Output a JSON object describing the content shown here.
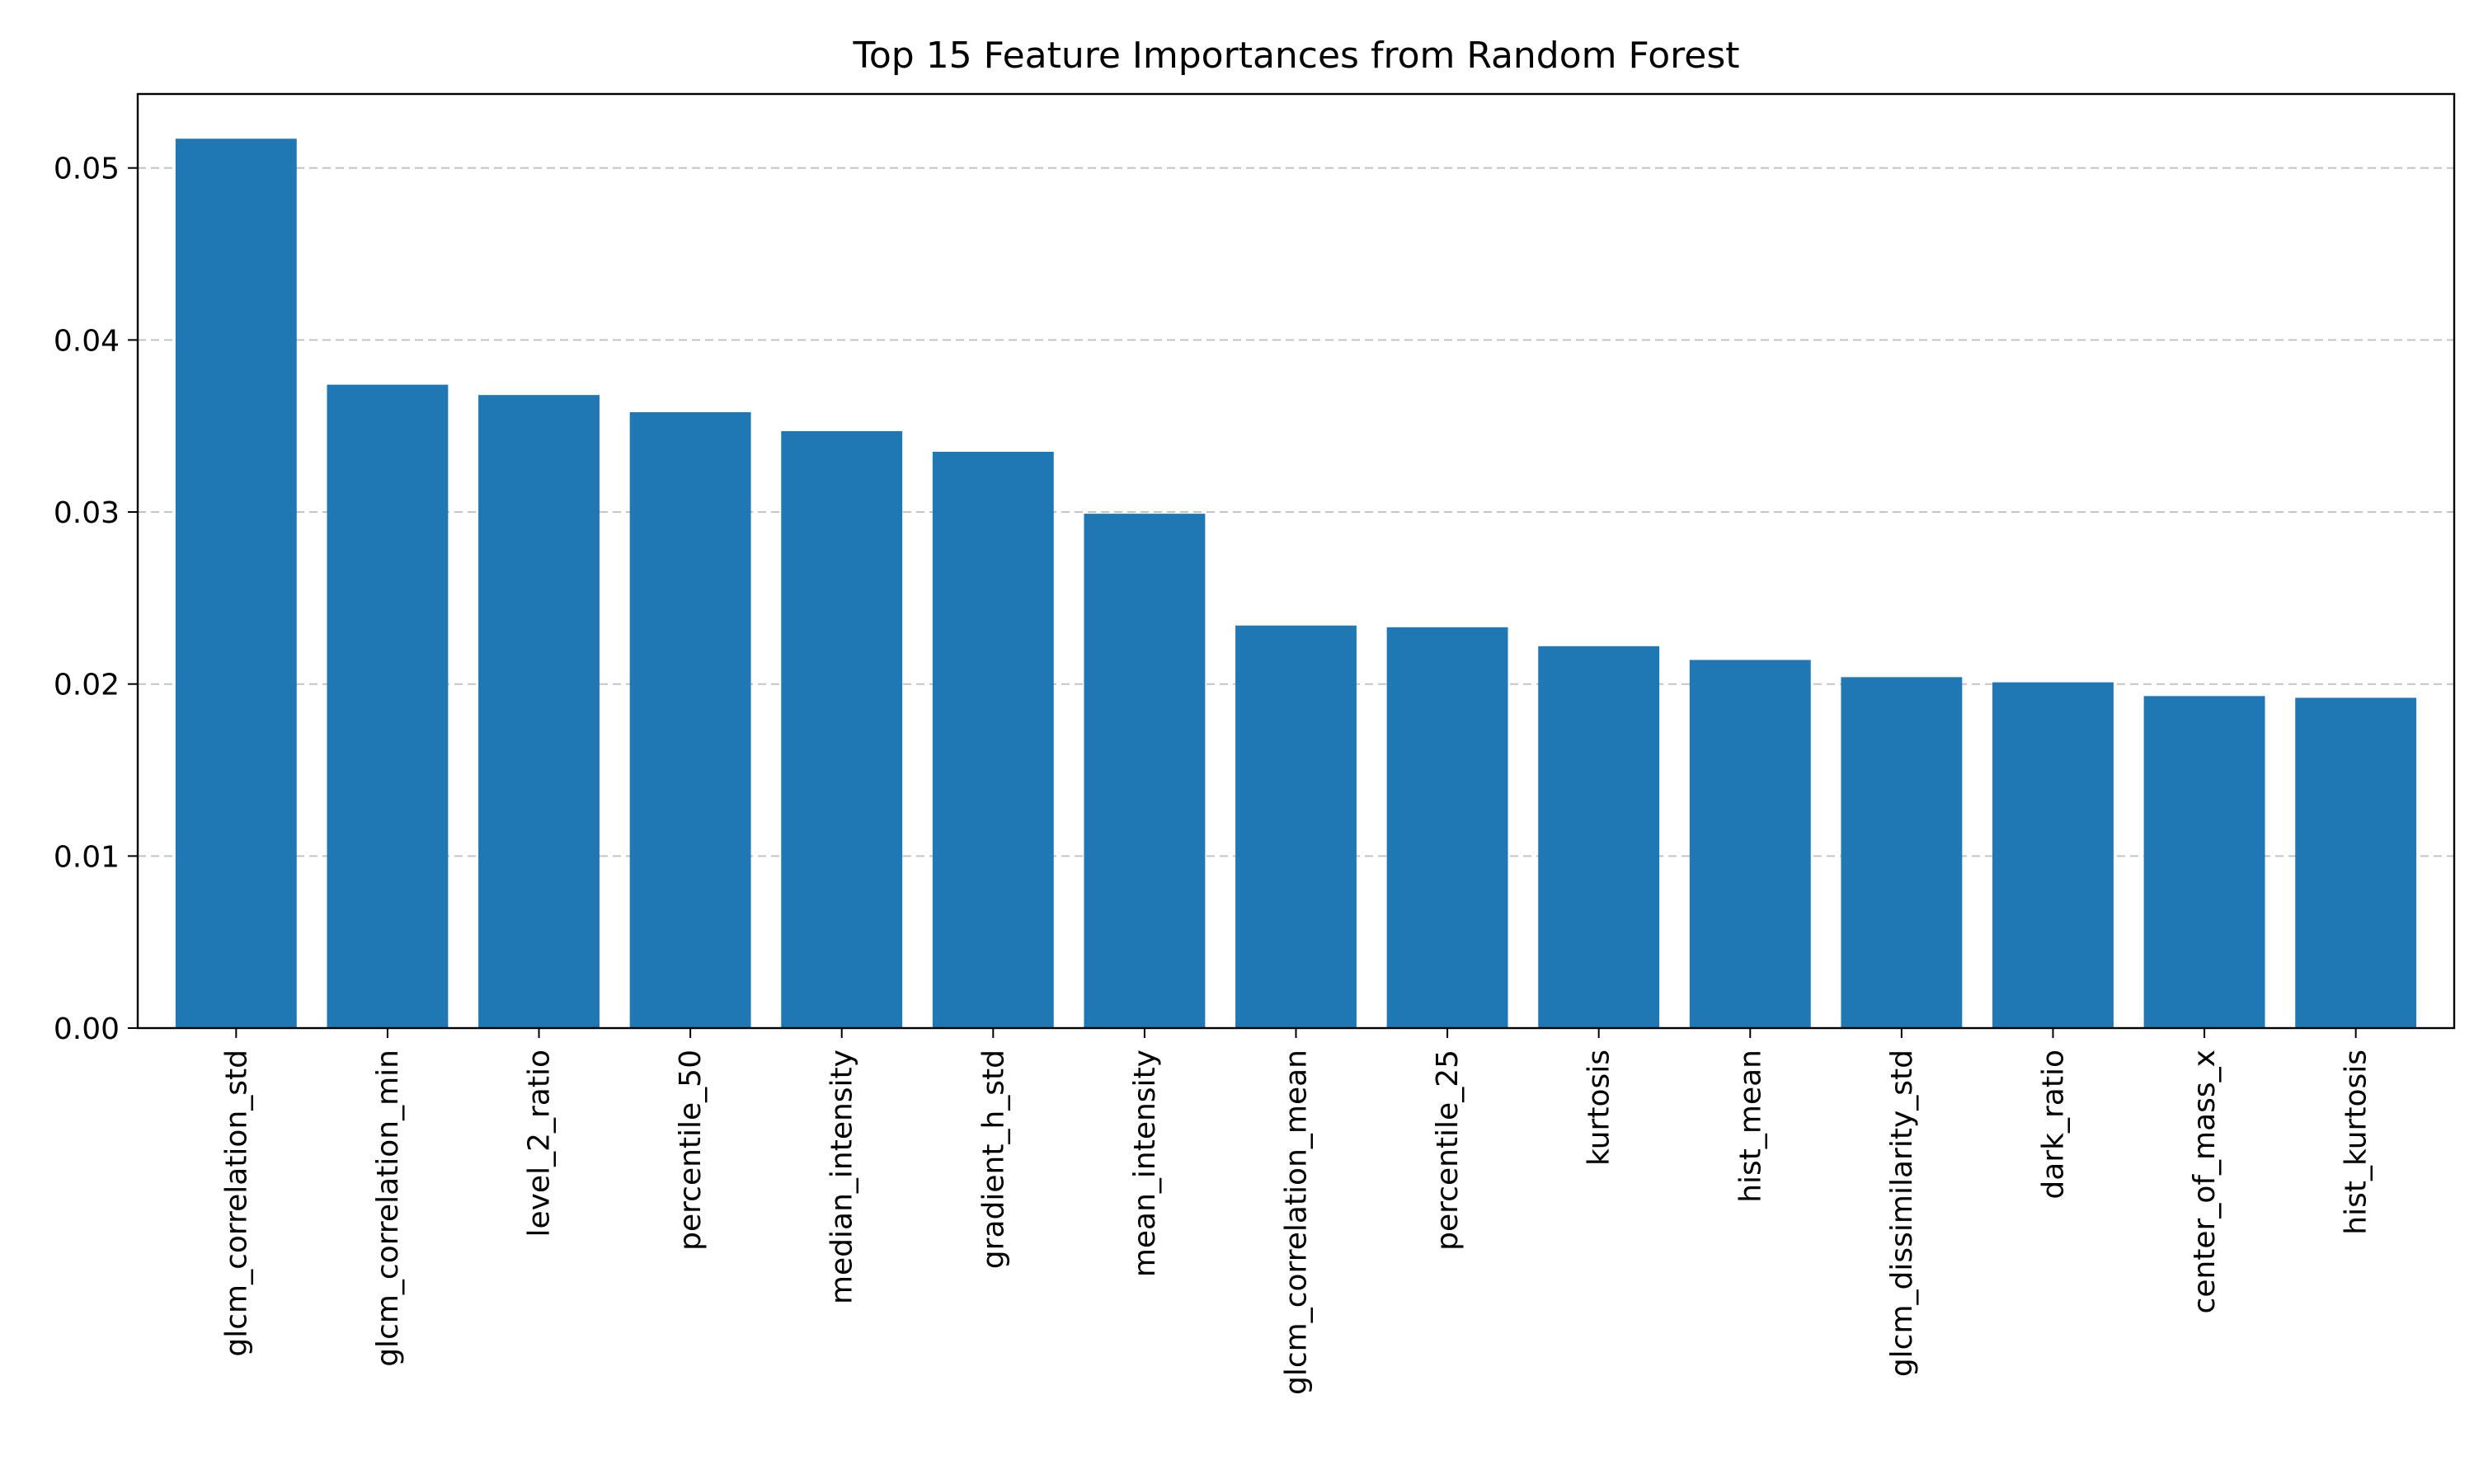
{
  "chart_data": {
    "type": "bar",
    "title": "Top 15 Feature Importances from Random Forest",
    "xlabel": "",
    "ylabel": "",
    "categories": [
      "glcm_correlation_std",
      "glcm_correlation_min",
      "level_2_ratio",
      "percentile_50",
      "median_intensity",
      "gradient_h_std",
      "mean_intensity",
      "glcm_correlation_mean",
      "percentile_25",
      "kurtosis",
      "hist_mean",
      "glcm_dissimilarity_std",
      "dark_ratio",
      "center_of_mass_x",
      "hist_kurtosis"
    ],
    "values": [
      0.0517,
      0.0374,
      0.0368,
      0.0358,
      0.0347,
      0.0335,
      0.0299,
      0.0234,
      0.0233,
      0.0222,
      0.0214,
      0.0204,
      0.0201,
      0.0193,
      0.0192
    ],
    "ylim": [
      0,
      0.0543
    ],
    "yticks": [
      0.0,
      0.01,
      0.02,
      0.03,
      0.04,
      0.05
    ],
    "ytick_labels": [
      "0.00",
      "0.01",
      "0.02",
      "0.03",
      "0.04",
      "0.05"
    ],
    "grid": "y-dashed",
    "legend": "none",
    "bar_color": "#1f77b4"
  }
}
